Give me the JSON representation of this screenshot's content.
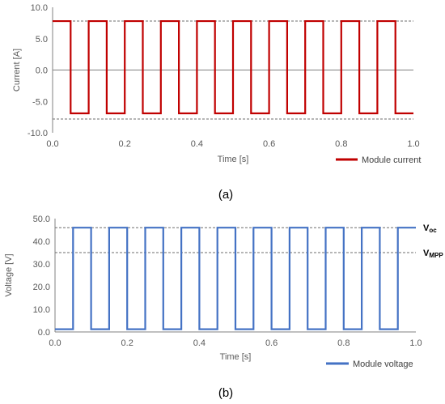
{
  "chart_data": [
    {
      "type": "line",
      "caption": "(a)",
      "xlabel": "Time [s]",
      "ylabel": "Current [A]",
      "xlim": [
        0,
        1.0
      ],
      "ylim": [
        -10,
        10
      ],
      "x_ticks": [
        "0.0",
        "0.2",
        "0.4",
        "0.6",
        "0.8",
        "1.0"
      ],
      "y_ticks": [
        "10.0",
        "5.0",
        "0.0",
        "-5.0",
        "-10.0"
      ],
      "grid": false,
      "zero_line": true,
      "legend_position": "bottom-right",
      "color": "#C00000",
      "reference_lines": [
        {
          "y": 7.8,
          "style": "dashed"
        },
        {
          "y": -7.8,
          "style": "dashed"
        }
      ],
      "series": [
        {
          "name": "Module current",
          "waveform": "square",
          "period_s": 0.1,
          "duty": 0.5,
          "start_s": 0.0,
          "end_s": 1.0,
          "high": 7.8,
          "low": -6.9,
          "starts_high": true
        }
      ]
    },
    {
      "type": "line",
      "caption": "(b)",
      "xlabel": "Time [s]",
      "ylabel": "Voltage [V]",
      "xlim": [
        0,
        1.0
      ],
      "ylim": [
        0,
        50
      ],
      "x_ticks": [
        "0.0",
        "0.2",
        "0.4",
        "0.6",
        "0.8",
        "1.0"
      ],
      "y_ticks": [
        "50.0",
        "40.0",
        "30.0",
        "20.0",
        "10.0",
        "0.0"
      ],
      "grid": false,
      "legend_position": "bottom-right",
      "color": "#4472C4",
      "reference_lines": [
        {
          "y": 46.0,
          "style": "dashed",
          "label_main": "V",
          "label_sub": "oc"
        },
        {
          "y": 35.0,
          "style": "dashed",
          "label_main": "V",
          "label_sub": "MPP"
        }
      ],
      "series": [
        {
          "name": "Module voltage",
          "waveform": "square",
          "period_s": 0.1,
          "duty": 0.5,
          "start_s": 0.0,
          "end_s": 1.0,
          "high": 46.0,
          "low": 1.2,
          "starts_high": false
        }
      ]
    }
  ]
}
